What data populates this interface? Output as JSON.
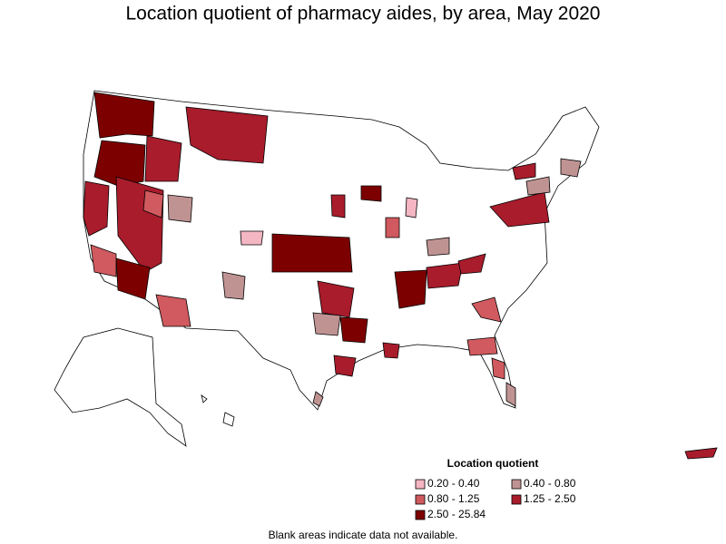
{
  "title": "Location quotient of pharmacy aides, by area, May 2020",
  "legend": {
    "title": "Location quotient",
    "items": [
      {
        "label": "0.20 - 0.40",
        "color": "#f4b6c2"
      },
      {
        "label": "0.40 - 0.80",
        "color": "#c09393"
      },
      {
        "label": "0.80 - 1.25",
        "color": "#d05a5f"
      },
      {
        "label": "1.25 - 2.50",
        "color": "#a81c2c"
      },
      {
        "label": "2.50 - 25.84",
        "color": "#7d0000"
      }
    ]
  },
  "note": "Blank areas indicate data not available."
}
